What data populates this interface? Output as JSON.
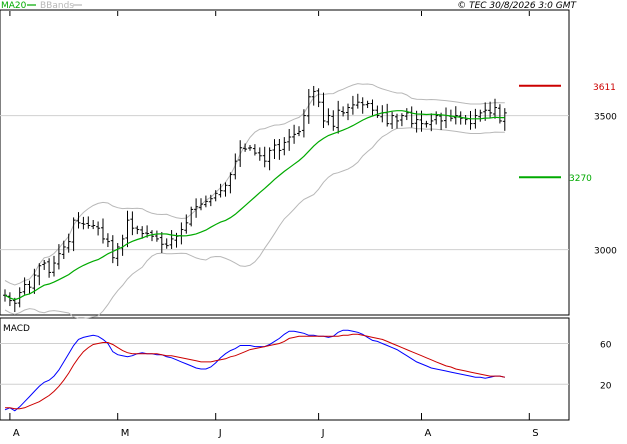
{
  "legend": {
    "ma_label": "MA20",
    "bb_label": "BBands",
    "ma_color": "#00aa00",
    "bb_color": "#b8b8b8"
  },
  "copyright": "© TEC 30/8/2026 3:0 GMT",
  "macd_label": "MACD",
  "chart_data": [
    {
      "type": "ohlc",
      "ylim": [
        2760,
        3890
      ],
      "yticks": [
        {
          "value": 3000,
          "label": "3000"
        },
        {
          "value": 3500,
          "label": "3500"
        }
      ],
      "x_labels": [
        {
          "index": 1,
          "label": "A"
        },
        {
          "index": 23,
          "label": "M"
        },
        {
          "index": 43,
          "label": "J"
        },
        {
          "index": 64,
          "label": "J"
        },
        {
          "index": 85,
          "label": "A"
        },
        {
          "index": 107,
          "label": "S"
        }
      ],
      "levels": [
        {
          "value": 3611,
          "label": "3611",
          "color": "#cc0000"
        },
        {
          "value": 3270,
          "label": "3270",
          "color": "#00aa00"
        }
      ],
      "series_colors": {
        "bars": "#000000",
        "ma20": "#00aa00",
        "bbands": "#b8b8b8"
      },
      "closes": [
        2830,
        2810,
        2800,
        2840,
        2870,
        2860,
        2905,
        2940,
        2950,
        2915,
        2950,
        2985,
        3010,
        3030,
        3110,
        3100,
        3095,
        3090,
        3090,
        3080,
        3040,
        3030,
        2970,
        3010,
        3040,
        3110,
        3080,
        3075,
        3060,
        3060,
        3050,
        3040,
        3020,
        3015,
        3040,
        3050,
        3075,
        3100,
        3150,
        3160,
        3170,
        3180,
        3190,
        3210,
        3220,
        3240,
        3280,
        3330,
        3380,
        3375,
        3380,
        3360,
        3350,
        3330,
        3370,
        3390,
        3370,
        3400,
        3420,
        3430,
        3440,
        3500,
        3570,
        3590,
        3550,
        3480,
        3500,
        3460,
        3520,
        3510,
        3530,
        3540,
        3550,
        3540,
        3545,
        3520,
        3500,
        3510,
        3470,
        3500,
        3480,
        3500,
        3510,
        3470,
        3485,
        3470,
        3470,
        3480,
        3500,
        3480,
        3500,
        3490,
        3500,
        3490,
        3485,
        3470,
        3500,
        3510,
        3520,
        3510,
        3530,
        3480,
        3510
      ]
    },
    {
      "type": "line",
      "title": "MACD",
      "ylim": [
        -14,
        84
      ],
      "yticks": [
        {
          "value": 60,
          "label": "60"
        },
        {
          "value": 20,
          "label": "20"
        }
      ],
      "series": [
        {
          "color": "#0000ff",
          "values": [
            -5,
            -3,
            -6,
            -2,
            3,
            8,
            13,
            18,
            22,
            24,
            28,
            34,
            42,
            50,
            58,
            64,
            66,
            67,
            68,
            67,
            64,
            60,
            52,
            49,
            48,
            47,
            48,
            50,
            51,
            50,
            50,
            49,
            49,
            47,
            46,
            44,
            42,
            40,
            38,
            36,
            35,
            35,
            37,
            41,
            46,
            50,
            53,
            55,
            58,
            58,
            58,
            57,
            57,
            57,
            59,
            62,
            65,
            69,
            72,
            72,
            71,
            70,
            68,
            68,
            67,
            67,
            66,
            67,
            71,
            73,
            73,
            72,
            71,
            69,
            66,
            63,
            62,
            60,
            58,
            56,
            54,
            51,
            48,
            45,
            42,
            40,
            38,
            36,
            35,
            34,
            33,
            32,
            31,
            30,
            29,
            28,
            27,
            27,
            26,
            27,
            28,
            28,
            27
          ]
        },
        {
          "color": "#cc0000",
          "values": [
            -3,
            -3,
            -4,
            -4,
            -3,
            -1,
            1,
            3,
            6,
            9,
            13,
            18,
            24,
            31,
            39,
            46,
            52,
            56,
            59,
            60,
            61,
            61,
            59,
            56,
            53,
            51,
            50,
            50,
            50,
            50,
            50,
            50,
            49,
            48,
            48,
            47,
            46,
            45,
            44,
            43,
            42,
            42,
            42,
            43,
            44,
            45,
            47,
            48,
            50,
            52,
            54,
            55,
            56,
            57,
            58,
            59,
            60,
            62,
            65,
            66,
            67,
            67,
            67,
            67,
            67,
            67,
            67,
            67,
            67,
            68,
            68,
            69,
            69,
            68,
            67,
            66,
            65,
            64,
            62,
            60,
            58,
            56,
            54,
            52,
            50,
            48,
            46,
            44,
            42,
            40,
            38,
            37,
            35,
            34,
            33,
            32,
            31,
            30,
            29,
            28,
            28,
            28,
            27
          ]
        }
      ]
    }
  ]
}
